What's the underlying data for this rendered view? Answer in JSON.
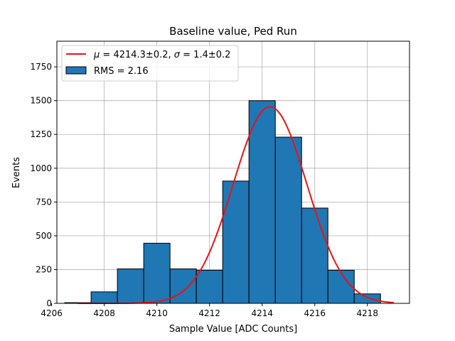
{
  "chart_data": {
    "type": "histogram",
    "title": "Baseline value, Ped Run",
    "xlabel": "Sample Value [ADC Counts]",
    "ylabel": "Events",
    "xlim": [
      4206.2,
      4219.6
    ],
    "ylim": [
      0,
      1940
    ],
    "grid": true,
    "xticks": [
      4206,
      4208,
      4210,
      4212,
      4214,
      4216,
      4218
    ],
    "yticks": [
      0,
      250,
      500,
      750,
      1000,
      1250,
      1500,
      1750
    ],
    "bins": [
      {
        "left": 4206.5,
        "right": 4207.5,
        "value": 5
      },
      {
        "left": 4207.5,
        "right": 4208.5,
        "value": 85
      },
      {
        "left": 4208.5,
        "right": 4209.5,
        "value": 255
      },
      {
        "left": 4209.5,
        "right": 4210.5,
        "value": 445
      },
      {
        "left": 4210.5,
        "right": 4211.5,
        "value": 255
      },
      {
        "left": 4211.5,
        "right": 4212.5,
        "value": 245
      },
      {
        "left": 4212.5,
        "right": 4213.5,
        "value": 905
      },
      {
        "left": 4213.5,
        "right": 4214.5,
        "value": 1500
      },
      {
        "left": 4214.5,
        "right": 4215.5,
        "value": 1230
      },
      {
        "left": 4215.5,
        "right": 4216.5,
        "value": 705
      },
      {
        "left": 4216.5,
        "right": 4217.5,
        "value": 245
      },
      {
        "left": 4217.5,
        "right": 4218.5,
        "value": 70
      }
    ],
    "fit": {
      "type": "gaussian",
      "mu": 4214.3,
      "sigma": 1.4,
      "amplitude": 1455,
      "x_range": [
        4207,
        4219
      ],
      "color": "#ee1111"
    },
    "bar_color": "#1f77b4",
    "legend": {
      "placement": "top-left",
      "entries": [
        {
          "label_mu_sym": "μ",
          "label_mu_text": " = 4214.3±0.2, ",
          "label_sigma_sym": "σ",
          "label_sigma_text": " = 1.4±0.2",
          "kind": "line"
        },
        {
          "label": "RMS = 2.16",
          "kind": "patch"
        }
      ]
    }
  }
}
